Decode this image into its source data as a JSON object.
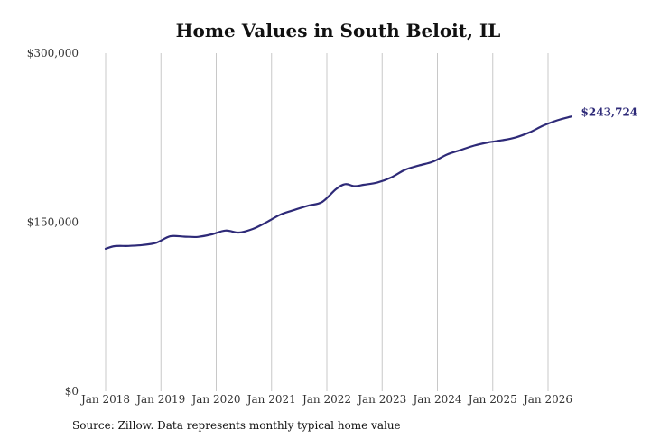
{
  "chart_data": {
    "type": "line",
    "title": "Home Values in South Beloit, IL",
    "xlabel": "",
    "ylabel": "",
    "ylim": [
      0,
      300000
    ],
    "y_ticks": [
      0,
      150000,
      300000
    ],
    "y_tick_labels": [
      "$0",
      "$150,000",
      "$300,000"
    ],
    "x_ticks": [
      "2018-01",
      "2019-01",
      "2020-01",
      "2021-01",
      "2022-01",
      "2023-01",
      "2024-01",
      "2025-01",
      "2026-01"
    ],
    "x_tick_labels": [
      "Jan 2018",
      "Jan 2019",
      "Jan 2020",
      "Jan 2021",
      "Jan 2022",
      "Jan 2023",
      "Jan 2024",
      "Jan 2025",
      "Jan 2026"
    ],
    "grid": "vertical",
    "line_color": "#2e2a78",
    "grid_color": "#c8c8c8",
    "end_label": "$243,724",
    "series": [
      {
        "x": [
          "2018-01",
          "2018-03",
          "2018-06",
          "2018-09",
          "2018-12",
          "2019-03",
          "2019-06",
          "2019-09",
          "2019-12",
          "2020-03",
          "2020-06",
          "2020-09",
          "2020-12",
          "2021-03",
          "2021-06",
          "2021-09",
          "2021-12",
          "2022-03",
          "2022-05",
          "2022-07",
          "2022-09",
          "2022-12",
          "2023-03",
          "2023-06",
          "2023-09",
          "2023-12",
          "2024-03",
          "2024-06",
          "2024-09",
          "2024-12",
          "2025-03",
          "2025-06",
          "2025-09",
          "2025-12",
          "2026-03",
          "2026-06"
        ],
        "values": [
          126500,
          128800,
          129000,
          129800,
          131800,
          137500,
          137200,
          137000,
          139200,
          142600,
          140800,
          144100,
          150200,
          156900,
          161000,
          164700,
          168000,
          179400,
          183800,
          182000,
          183200,
          185300,
          189800,
          196600,
          200300,
          203700,
          209900,
          214000,
          218000,
          220800,
          222700,
          225300,
          229800,
          235800,
          240400,
          243724
        ]
      }
    ]
  },
  "source_note": "Source: Zillow. Data represents monthly typical home value"
}
